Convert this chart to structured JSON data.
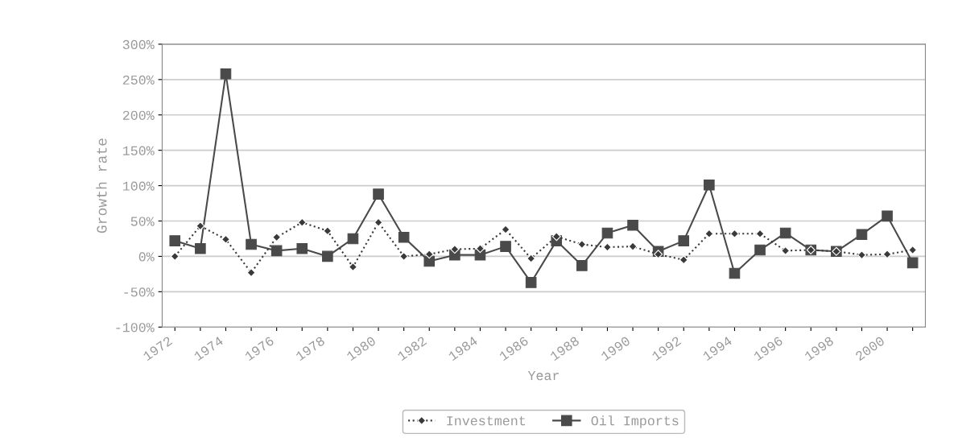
{
  "chart_data": {
    "type": "line",
    "xlabel": "Year",
    "ylabel": "Growth rate",
    "categories": [
      "1972",
      null,
      "1974",
      null,
      "1976",
      null,
      "1978",
      null,
      "1980",
      null,
      "1982",
      null,
      "1984",
      null,
      "1986",
      null,
      "1988",
      null,
      "1990",
      null,
      "1992",
      null,
      "1994",
      null,
      "1996",
      null,
      "1998",
      null,
      "2000",
      null
    ],
    "series": [
      {
        "name": "Investment",
        "color": "#3a3a3a",
        "marker": "diamond",
        "line_style": "dotted",
        "values": [
          0,
          43,
          24,
          -23,
          27,
          48,
          36,
          -15,
          48,
          0,
          3,
          10,
          11,
          38,
          -3,
          28,
          17,
          13,
          14,
          3,
          -5,
          32,
          32,
          32,
          8,
          9,
          7,
          2,
          3,
          9
        ]
      },
      {
        "name": "Oil Imports",
        "color": "#4a4a4a",
        "marker": "square",
        "line_style": "solid",
        "values": [
          22,
          11,
          258,
          17,
          8,
          11,
          0,
          25,
          88,
          27,
          -7,
          2,
          2,
          14,
          -37,
          22,
          -13,
          33,
          44,
          7,
          22,
          101,
          -24,
          9,
          33,
          9,
          7,
          31,
          57,
          -9
        ]
      }
    ],
    "ylim": [
      -100,
      300
    ],
    "yticks": [
      {
        "value": -100,
        "label": "-100%"
      },
      {
        "value": -50,
        "label": "-50%"
      },
      {
        "value": 0,
        "label": "0%"
      },
      {
        "value": 50,
        "label": "50%"
      },
      {
        "value": 100,
        "label": "100%"
      },
      {
        "value": 150,
        "label": "150%"
      },
      {
        "value": 200,
        "label": "200%"
      },
      {
        "value": 250,
        "label": "250%"
      },
      {
        "value": 300,
        "label": "300%"
      }
    ],
    "grid": "y",
    "legend": "bottom"
  }
}
